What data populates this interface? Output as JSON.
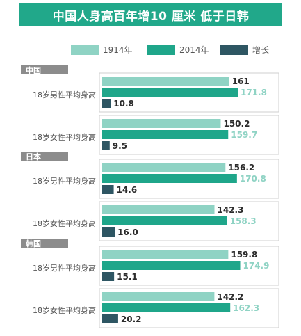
{
  "title": "中国人身高百年增10 厘米 低于日韩",
  "legend": {
    "y1914": "1914年",
    "y2014": "2014年",
    "growth": "增长"
  },
  "colors": {
    "title_bg": "#21a88a",
    "y1914": "#8fd3c4",
    "y2014": "#1fa68a",
    "growth": "#2e5663",
    "section_bg": "#8c8c8c",
    "group_border": "#cfcfcf"
  },
  "chart_data": {
    "type": "bar",
    "orientation": "horizontal",
    "title": "中国人身高百年增10 厘米 低于日韩",
    "series_names": [
      "1914年",
      "2014年",
      "增长"
    ],
    "sections": [
      {
        "country": "中国",
        "groups": [
          {
            "label": "18岁男性平均身高",
            "values": [
              161,
              171.8,
              10.8
            ],
            "display": [
              "161",
              "171.8",
              "10.8"
            ]
          },
          {
            "label": "18岁女性平均身高",
            "values": [
              150.2,
              159.7,
              9.5
            ],
            "display": [
              "150.2",
              "159.7",
              "9.5"
            ]
          }
        ]
      },
      {
        "country": "日本",
        "groups": [
          {
            "label": "18岁男性平均身高",
            "values": [
              156.2,
              170.8,
              14.6
            ],
            "display": [
              "156.2",
              "170.8",
              "14.6"
            ]
          },
          {
            "label": "18岁女性平均身高",
            "values": [
              142.3,
              158.3,
              16.0
            ],
            "display": [
              "142.3",
              "158.3",
              "16.0"
            ]
          }
        ]
      },
      {
        "country": "韩国",
        "groups": [
          {
            "label": "18岁男性平均身高",
            "values": [
              159.8,
              174.9,
              15.1
            ],
            "display": [
              "159.8",
              "174.9",
              "15.1"
            ]
          },
          {
            "label": "18岁女性平均身高",
            "values": [
              142.2,
              162.3,
              20.2
            ],
            "display": [
              "142.2",
              "162.3",
              "20.2"
            ]
          }
        ]
      }
    ]
  }
}
